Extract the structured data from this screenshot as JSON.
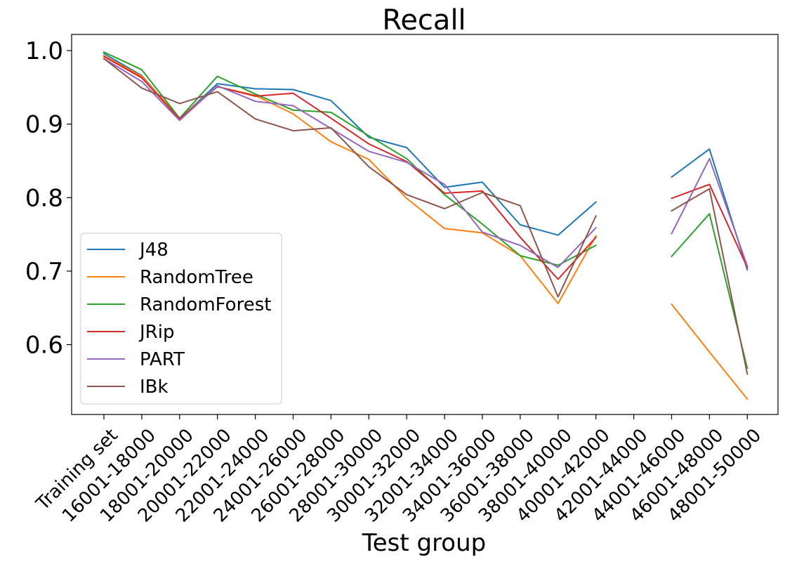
{
  "chart_data": {
    "type": "line",
    "title": "Recall",
    "xlabel": "Test group",
    "ylabel": "",
    "categories": [
      "Training set",
      "16001-18000",
      "18001-20000",
      "20001-22000",
      "22001-24000",
      "24001-26000",
      "26001-28000",
      "28001-30000",
      "30001-32000",
      "32001-34000",
      "34001-36000",
      "36001-38000",
      "38001-40000",
      "40001-42000",
      "42001-44000",
      "44001-46000",
      "46001-48000",
      "48001-50000"
    ],
    "ylim": [
      0.505,
      1.022
    ],
    "yticks": [
      0.6,
      0.7,
      0.8,
      0.9,
      1.0
    ],
    "ytick_labels": [
      "0.6",
      "0.7",
      "0.8",
      "0.9",
      "1.0"
    ],
    "grid": false,
    "legend_position": "lower-left",
    "series": [
      {
        "name": "J48",
        "color": "#1f77b4",
        "values": [
          0.996,
          0.966,
          0.907,
          0.955,
          0.948,
          0.947,
          0.932,
          0.882,
          0.868,
          0.814,
          0.821,
          0.763,
          0.749,
          0.794,
          null,
          0.828,
          0.866,
          0.702
        ]
      },
      {
        "name": "RandomTree",
        "color": "#ff7f0e",
        "values": [
          0.993,
          0.965,
          0.908,
          0.951,
          0.939,
          0.914,
          0.876,
          0.852,
          0.799,
          0.758,
          0.752,
          0.721,
          0.656,
          0.748,
          null,
          0.655,
          0.59,
          0.526
        ]
      },
      {
        "name": "RandomForest",
        "color": "#2ca02c",
        "values": [
          0.998,
          0.974,
          0.908,
          0.965,
          0.941,
          0.919,
          0.916,
          0.884,
          0.853,
          0.804,
          0.764,
          0.721,
          0.708,
          0.735,
          null,
          0.72,
          0.778,
          0.568
        ]
      },
      {
        "name": "JRip",
        "color": "#d62728",
        "values": [
          0.992,
          0.963,
          0.907,
          0.951,
          0.938,
          0.942,
          0.908,
          0.873,
          0.849,
          0.806,
          0.809,
          0.746,
          0.689,
          0.746,
          null,
          0.799,
          0.818,
          0.705
        ]
      },
      {
        "name": "PART",
        "color": "#9467bd",
        "values": [
          0.989,
          0.958,
          0.905,
          0.952,
          0.931,
          0.925,
          0.894,
          0.863,
          0.848,
          0.818,
          0.753,
          0.735,
          0.705,
          0.759,
          null,
          0.751,
          0.853,
          0.707
        ]
      },
      {
        "name": "IBk",
        "color": "#8c564b",
        "values": [
          0.989,
          0.949,
          0.928,
          0.944,
          0.907,
          0.891,
          0.895,
          0.842,
          0.804,
          0.785,
          0.807,
          0.789,
          0.665,
          0.775,
          null,
          0.782,
          0.812,
          0.56
        ]
      }
    ]
  }
}
